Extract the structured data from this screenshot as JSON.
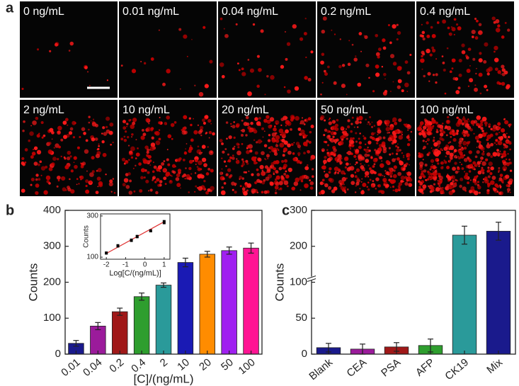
{
  "panel_labels": [
    "a",
    "b",
    "c"
  ],
  "images": {
    "labels": [
      "0 ng/mL",
      "0.01 ng/mL",
      "0.04 ng/mL",
      "0.2 ng/mL",
      "0.4 ng/mL",
      "2 ng/mL",
      "10 ng/mL",
      "20 ng/mL",
      "50 ng/mL",
      "100 ng/mL"
    ]
  },
  "chart_data": [
    {
      "type": "bar",
      "x_label": "[C]/(ng/mL)",
      "y_label": "Counts",
      "categories": [
        "0.01",
        "0.04",
        "0.2",
        "0.4",
        "2",
        "10",
        "20",
        "50",
        "100"
      ],
      "values": [
        30,
        78,
        118,
        160,
        192,
        255,
        278,
        288,
        295
      ],
      "errors": [
        8,
        10,
        10,
        10,
        6,
        12,
        8,
        10,
        14
      ],
      "colors": [
        "#1a1a8c",
        "#9b1b9b",
        "#a01818",
        "#2e9e2e",
        "#2a9a9a",
        "#1a1ab4",
        "#ff8c00",
        "#a020f0",
        "#ff1493"
      ],
      "ylim": [
        0,
        400
      ],
      "yticks": [
        0,
        100,
        200,
        300,
        400
      ]
    },
    {
      "type": "scatter",
      "x_label": "Log[C/(ng/mL)]",
      "y_label": "Counts",
      "x": [
        -2,
        -1.4,
        -0.7,
        -0.4,
        0.3,
        1
      ],
      "values": [
        120,
        155,
        182,
        200,
        228,
        270
      ],
      "errors": [
        5,
        6,
        6,
        6,
        5,
        8
      ],
      "color": "#000000",
      "fit_line": {
        "x": [
          -2,
          1
        ],
        "values": [
          118,
          272
        ],
        "color": "#e03030"
      },
      "xlim": [
        -2.3,
        1.3
      ],
      "xticks": [
        -2,
        -1,
        0,
        1
      ],
      "ylim": [
        90,
        310
      ],
      "yticks": [
        100,
        300
      ]
    },
    {
      "type": "bar",
      "y_label": "Counts",
      "categories": [
        "Blank",
        "CEA",
        "PSA",
        "AFP",
        "CK19",
        "Mix"
      ],
      "values": [
        9,
        7,
        10,
        12,
        231,
        242
      ],
      "errors": [
        6,
        7,
        6,
        9,
        25,
        25
      ],
      "colors": [
        "#1a1a8c",
        "#9b1b9b",
        "#a01818",
        "#2e9e2e",
        "#2a9a9a",
        "#1a1a8c"
      ],
      "ylim": [
        0,
        300
      ],
      "ybreak": 100,
      "yticks": [
        0,
        50,
        100,
        200,
        300
      ]
    }
  ]
}
